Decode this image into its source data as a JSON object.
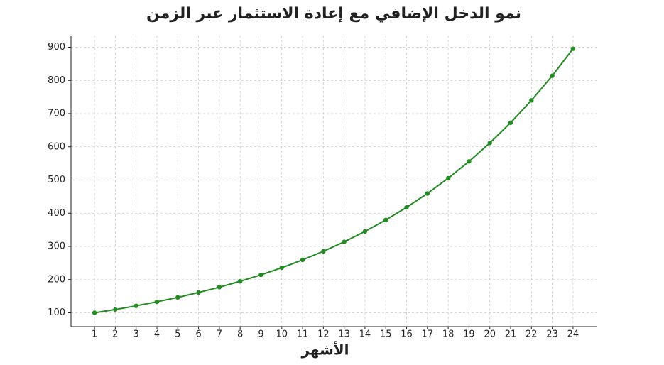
{
  "chart_data": {
    "type": "line",
    "title": "نمو الدخل الإضافي مع إعادة الاستثمار عبر الزمن",
    "x_label": "الأشهر",
    "x": [
      1,
      2,
      3,
      4,
      5,
      6,
      7,
      8,
      9,
      10,
      11,
      12,
      13,
      14,
      15,
      16,
      17,
      18,
      19,
      20,
      21,
      22,
      23,
      24
    ],
    "series": [
      {
        "color": "#228b22",
        "values": [
          100,
          110,
          121,
          133.1,
          146.4,
          161.1,
          177.2,
          194.9,
          214.4,
          235.8,
          259.4,
          285.3,
          313.8,
          345.2,
          379.7,
          417.7,
          459.5,
          505.4,
          556,
          611.6,
          672.7,
          740,
          814,
          895.4
        ]
      }
    ],
    "xlim": [
      -0.13,
      25.13
    ],
    "ylim": [
      58.3,
      935.3
    ],
    "xticks": [
      1,
      2,
      3,
      4,
      5,
      6,
      7,
      8,
      9,
      10,
      11,
      12,
      13,
      14,
      15,
      16,
      17,
      18,
      19,
      20,
      21,
      22,
      23,
      24
    ],
    "yticks": [
      100,
      200,
      300,
      400,
      500,
      600,
      700,
      800,
      900
    ],
    "grid": true
  }
}
